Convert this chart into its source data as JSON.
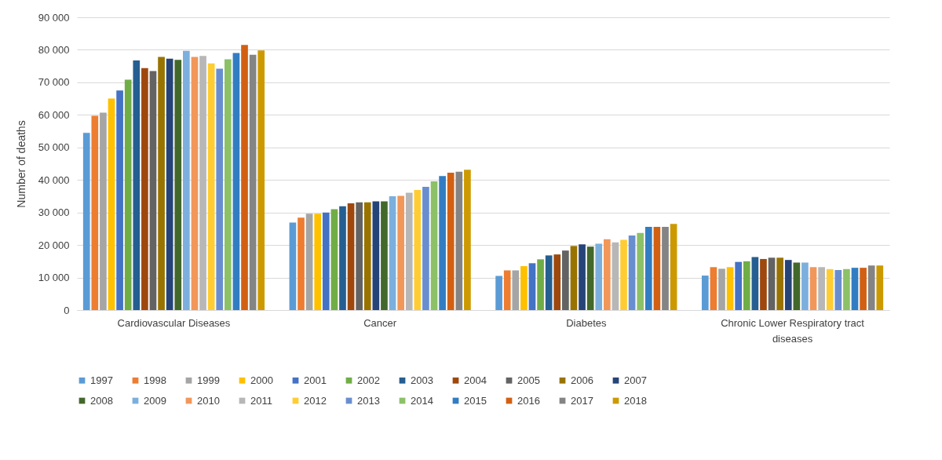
{
  "chart_data": {
    "type": "bar",
    "ylabel": "Number of deaths",
    "categories": [
      "Cardiovascular Diseases",
      "Cancer",
      "Diabetes",
      "Chronic Lower Respiratory tract diseases"
    ],
    "ylim": [
      0,
      90000
    ],
    "yticks": [
      {
        "value": 0,
        "label": "0"
      },
      {
        "value": 10000,
        "label": "10 000"
      },
      {
        "value": 20000,
        "label": "20 000"
      },
      {
        "value": 30000,
        "label": "30 000"
      },
      {
        "value": 40000,
        "label": "40 000"
      },
      {
        "value": 50000,
        "label": "50 000"
      },
      {
        "value": 60000,
        "label": "60 000"
      },
      {
        "value": 70000,
        "label": "70 000"
      },
      {
        "value": 80000,
        "label": "80 000"
      },
      {
        "value": 90000,
        "label": "90 000"
      }
    ],
    "grid": "y",
    "legend": "bottom",
    "series": [
      {
        "name": "1997",
        "color": "#5b9bd5",
        "values": [
          54500,
          26900,
          10500,
          10600
        ]
      },
      {
        "name": "1998",
        "color": "#ed7d31",
        "values": [
          59700,
          28400,
          12200,
          13200
        ]
      },
      {
        "name": "1999",
        "color": "#a5a5a5",
        "values": [
          60700,
          29600,
          12200,
          12700
        ]
      },
      {
        "name": "2000",
        "color": "#ffc000",
        "values": [
          65000,
          29600,
          13500,
          13200
        ]
      },
      {
        "name": "2001",
        "color": "#4472c4",
        "values": [
          67500,
          30000,
          14400,
          14800
        ]
      },
      {
        "name": "2002",
        "color": "#70ad47",
        "values": [
          70800,
          31000,
          15600,
          15000
        ]
      },
      {
        "name": "2003",
        "color": "#255e91",
        "values": [
          76700,
          31900,
          16800,
          16300
        ]
      },
      {
        "name": "2004",
        "color": "#9e480e",
        "values": [
          74400,
          32800,
          17100,
          15700
        ]
      },
      {
        "name": "2005",
        "color": "#636363",
        "values": [
          73500,
          33100,
          18300,
          16100
        ]
      },
      {
        "name": "2006",
        "color": "#997300",
        "values": [
          77800,
          33100,
          19700,
          16100
        ]
      },
      {
        "name": "2007",
        "color": "#264478",
        "values": [
          77300,
          33400,
          20200,
          15400
        ]
      },
      {
        "name": "2008",
        "color": "#43682b",
        "values": [
          76900,
          33400,
          19500,
          14600
        ]
      },
      {
        "name": "2009",
        "color": "#7cafdd",
        "values": [
          79700,
          35000,
          20400,
          14600
        ]
      },
      {
        "name": "2010",
        "color": "#f1975a",
        "values": [
          77800,
          35100,
          21800,
          13200
        ]
      },
      {
        "name": "2011",
        "color": "#b7b7b7",
        "values": [
          78100,
          36100,
          20800,
          13200
        ]
      },
      {
        "name": "2012",
        "color": "#ffcd33",
        "values": [
          75800,
          36900,
          21600,
          12600
        ]
      },
      {
        "name": "2013",
        "color": "#698ed0",
        "values": [
          74200,
          37900,
          22900,
          12300
        ]
      },
      {
        "name": "2014",
        "color": "#8cc168",
        "values": [
          77100,
          39600,
          23700,
          12600
        ]
      },
      {
        "name": "2015",
        "color": "#327dc2",
        "values": [
          79000,
          41200,
          25600,
          13000
        ]
      },
      {
        "name": "2016",
        "color": "#d26012",
        "values": [
          81500,
          42200,
          25600,
          13000
        ]
      },
      {
        "name": "2017",
        "color": "#848484",
        "values": [
          78500,
          42500,
          25600,
          13700
        ]
      },
      {
        "name": "2018",
        "color": "#cc9a00",
        "values": [
          79800,
          43100,
          26500,
          13700
        ]
      }
    ]
  }
}
